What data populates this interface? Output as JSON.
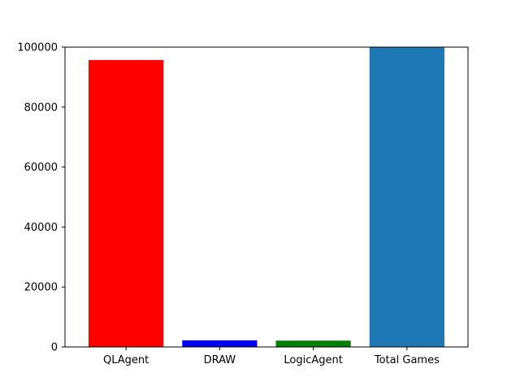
{
  "chart_data": {
    "type": "bar",
    "categories": [
      "QLAgent",
      "DRAW",
      "LogicAgent",
      "Total Games"
    ],
    "values": [
      95700,
      2200,
      2100,
      100000
    ],
    "colors": [
      "#ff0000",
      "#0000ff",
      "#008000",
      "#1f77b4"
    ],
    "ylim": [
      0,
      100000
    ],
    "yticks": [
      0,
      20000,
      40000,
      60000,
      80000,
      100000
    ],
    "ytick_labels": [
      "0",
      "20000",
      "40000",
      "60000",
      "80000",
      "100000"
    ],
    "grid": false,
    "legend": "none"
  }
}
